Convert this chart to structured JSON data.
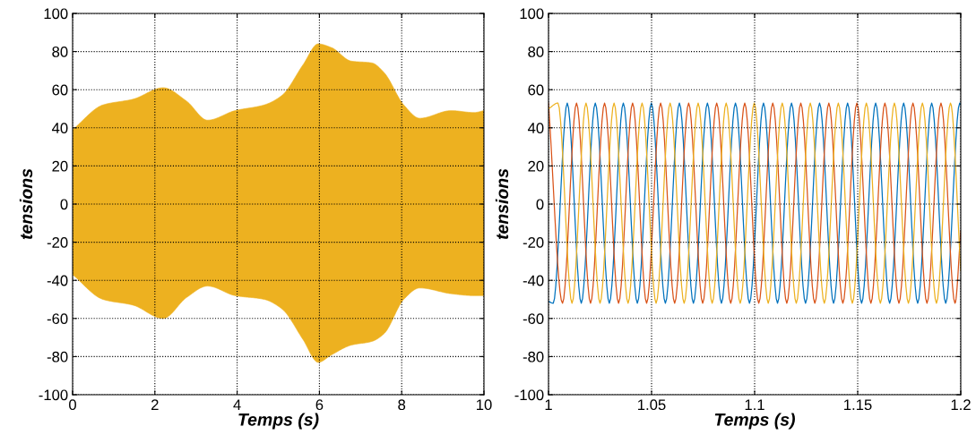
{
  "chart_data": [
    {
      "type": "area",
      "xlabel": "Temps (s)",
      "ylabel": "tensions",
      "xlim": [
        0,
        10
      ],
      "xticks": [
        0,
        2,
        4,
        6,
        8,
        10
      ],
      "ylim": [
        -100,
        100
      ],
      "yticks": [
        -100,
        -80,
        -60,
        -40,
        -20,
        0,
        20,
        40,
        60,
        80,
        100
      ],
      "grid": true,
      "x": [
        0,
        0.74,
        1.47,
        2.2,
        2.77,
        3.28,
        3.95,
        4.66,
        5.09,
        5.6,
        5.97,
        6.3,
        6.77,
        7.28,
        7.57,
        8.05,
        8.44,
        9.2,
        9.76,
        10
      ],
      "series": [
        {
          "color": "#edb120",
          "values": [
            39,
            52,
            55,
            61,
            54,
            44,
            49,
            52,
            57,
            73,
            84,
            82,
            75,
            74,
            69,
            52,
            45,
            49,
            48,
            49
          ]
        },
        {
          "color": "#edb120",
          "values": [
            -37,
            -50,
            -53,
            -60,
            -49,
            -43,
            -48,
            -50,
            -55,
            -71,
            -83,
            -79,
            -74,
            -72,
            -68,
            -50,
            -44,
            -47,
            -48,
            -48
          ]
        }
      ]
    },
    {
      "type": "line",
      "xlabel": "Temps (s)",
      "ylabel": "tensions",
      "xlim": [
        1,
        1.2
      ],
      "xticks": [
        1,
        {
          "value": 1.05,
          "label": "1.05"
        },
        {
          "value": 1.1,
          "label": "1.1"
        },
        {
          "value": 1.15,
          "label": "1.15"
        },
        {
          "value": 1.2,
          "label": "1.2"
        }
      ],
      "ylim": [
        -100,
        100
      ],
      "yticks": [
        -100,
        -80,
        -60,
        -40,
        -20,
        0,
        20,
        40,
        60,
        80,
        100
      ],
      "grid": true,
      "marker": "none",
      "line_style": "solid",
      "series": [
        {
          "color": "#0072bd",
          "x": [
            1.0,
            1.0023,
            1.0091,
            1.0159,
            1.0227,
            1.0295,
            1.0363,
            1.0431,
            1.0499,
            1.0567,
            1.0635,
            1.0703,
            1.0771,
            1.0839,
            1.0907,
            1.0975,
            1.1043,
            1.1111,
            1.1179,
            1.1247,
            1.1315,
            1.1383,
            1.1451,
            1.1519,
            1.1587,
            1.1655,
            1.1723,
            1.1791,
            1.1859,
            1.1927,
            1.1995,
            1.2
          ],
          "values": [
            -51,
            -52,
            53,
            -52,
            53,
            -52,
            53,
            -52,
            53,
            -52,
            53,
            -52,
            53,
            -52,
            53,
            -52,
            53,
            -52,
            53,
            -52,
            53,
            -52,
            53,
            -52,
            53,
            -52,
            53,
            -52,
            53,
            -52,
            53,
            52
          ]
        },
        {
          "color": "#d95319",
          "x": [
            1.0,
            1.0068,
            1.0136,
            1.0204,
            1.0272,
            1.034,
            1.0408,
            1.0476,
            1.0544,
            1.0612,
            1.068,
            1.0748,
            1.0816,
            1.0884,
            1.0952,
            1.102,
            1.1088,
            1.1156,
            1.1224,
            1.1292,
            1.136,
            1.1428,
            1.1496,
            1.1564,
            1.1632,
            1.17,
            1.1768,
            1.1836,
            1.1904,
            1.1972,
            1.2
          ],
          "values": [
            53,
            -52,
            53,
            -52,
            53,
            -52,
            53,
            -52,
            53,
            -52,
            53,
            -52,
            53,
            -52,
            53,
            -52,
            53,
            -52,
            53,
            -52,
            53,
            -52,
            53,
            -52,
            53,
            -52,
            53,
            -52,
            53,
            -52,
            -14
          ]
        },
        {
          "color": "#edb120",
          "x": [
            1.0,
            1.0046,
            1.0114,
            1.0182,
            1.025,
            1.0318,
            1.0386,
            1.0454,
            1.0522,
            1.059,
            1.0658,
            1.0726,
            1.0794,
            1.0862,
            1.093,
            1.0998,
            1.1066,
            1.1134,
            1.1202,
            1.127,
            1.1338,
            1.1406,
            1.1474,
            1.1542,
            1.161,
            1.1678,
            1.1746,
            1.1814,
            1.1882,
            1.195,
            1.2
          ],
          "values": [
            50,
            53,
            -52,
            53,
            -52,
            53,
            -52,
            53,
            -52,
            53,
            -52,
            53,
            -52,
            53,
            -52,
            53,
            -52,
            53,
            -52,
            53,
            -52,
            53,
            -52,
            53,
            -52,
            53,
            -52,
            53,
            -52,
            53,
            -35
          ]
        }
      ]
    }
  ]
}
